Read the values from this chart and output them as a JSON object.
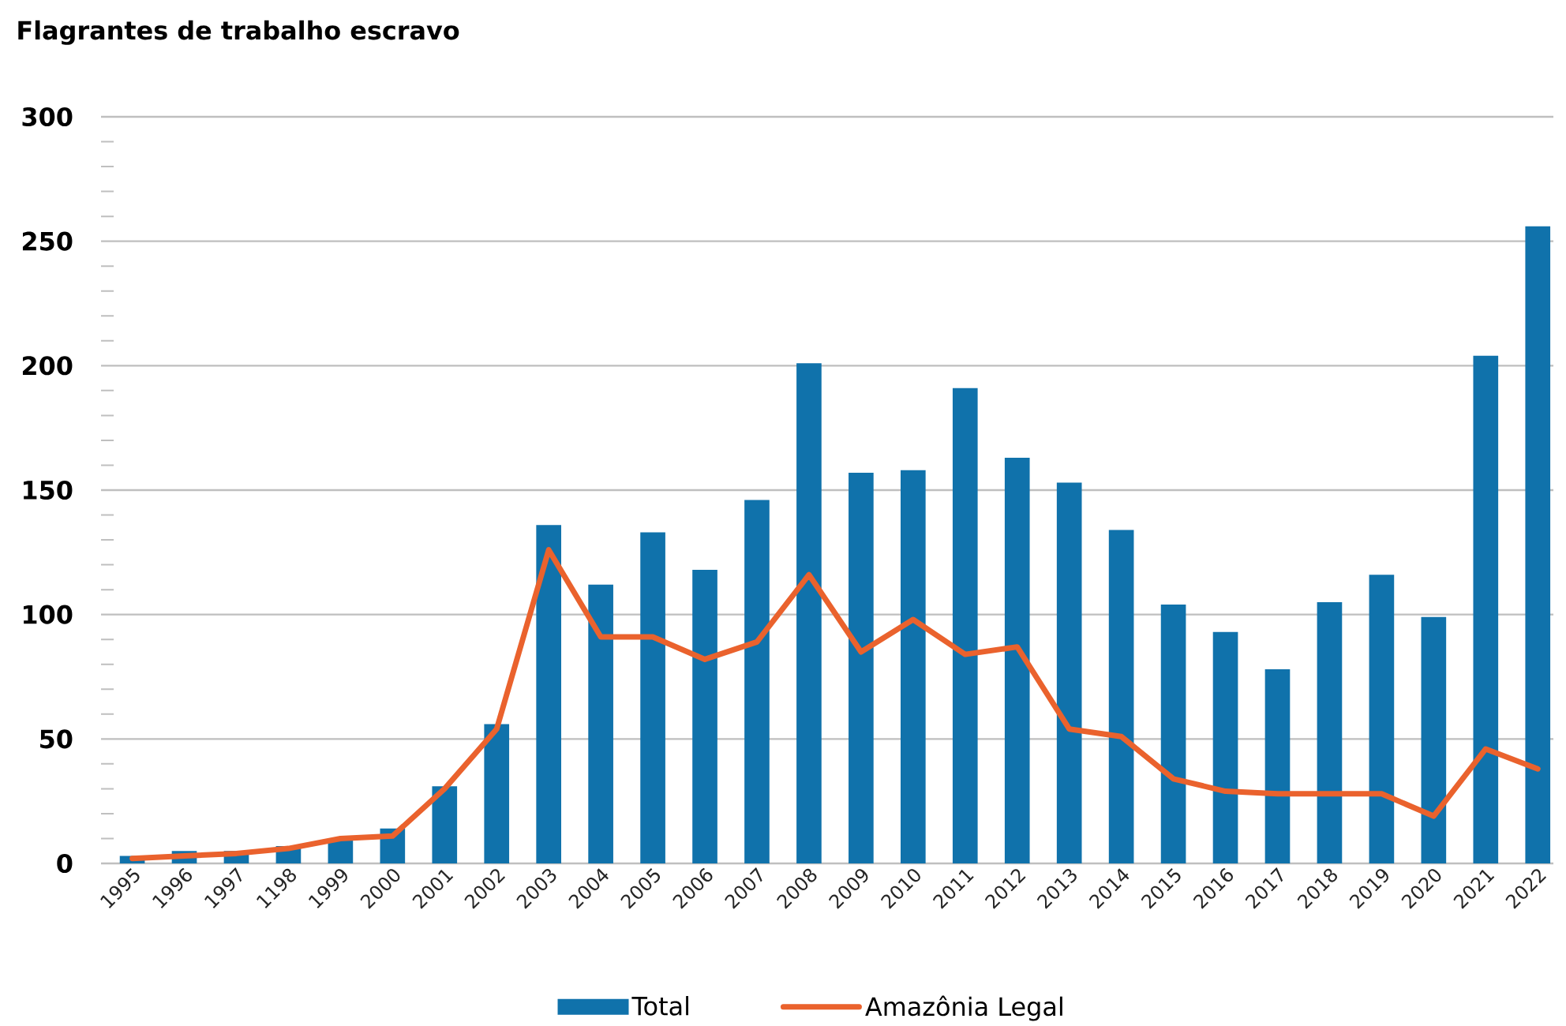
{
  "chart_data": {
    "type": "bar",
    "title": "Flagrantes de trabalho escravo",
    "categories": [
      "1995",
      "1996",
      "1997",
      "1198",
      "1999",
      "2000",
      "2001",
      "2002",
      "2003",
      "2004",
      "2005",
      "2006",
      "2007",
      "2008",
      "2009",
      "2010",
      "2011",
      "2012",
      "2013",
      "2014",
      "2015",
      "2016",
      "2017",
      "2018",
      "2019",
      "2020",
      "2021",
      "2022"
    ],
    "series": [
      {
        "name": "Total",
        "color": "#1072ab",
        "values": [
          3,
          5,
          5,
          7,
          10,
          14,
          31,
          56,
          136,
          112,
          133,
          118,
          146,
          201,
          157,
          158,
          191,
          163,
          153,
          134,
          104,
          93,
          78,
          105,
          116,
          99,
          204,
          256
        ]
      },
      {
        "name": "Amazônia Legal",
        "type": "line",
        "color": "#ea622d",
        "values": [
          2,
          3,
          4,
          6,
          10,
          11,
          30,
          54,
          126,
          91,
          91,
          82,
          89,
          116,
          85,
          98,
          84,
          87,
          54,
          51,
          34,
          29,
          28,
          28,
          28,
          19,
          46,
          38
        ]
      }
    ],
    "ylim": [
      0,
      300
    ],
    "yticks": [
      0,
      {
        "value": 10,
        "label": null
      },
      {
        "value": 20,
        "label": null
      },
      {
        "value": 30,
        "label": null
      },
      {
        "value": 40,
        "label": null
      },
      50,
      {
        "value": 60,
        "label": null
      },
      {
        "value": 70,
        "label": null
      },
      {
        "value": 80,
        "label": null
      },
      {
        "value": 90,
        "label": null
      },
      100,
      {
        "value": 110,
        "label": null
      },
      {
        "value": 120,
        "label": null
      },
      {
        "value": 130,
        "label": null
      },
      {
        "value": 140,
        "label": null
      },
      150,
      {
        "value": 160,
        "label": null
      },
      {
        "value": 170,
        "label": null
      },
      {
        "value": 180,
        "label": null
      },
      {
        "value": 190,
        "label": null
      },
      200,
      {
        "value": 210,
        "label": null
      },
      {
        "value": 220,
        "label": null
      },
      {
        "value": 230,
        "label": null
      },
      {
        "value": 240,
        "label": null
      },
      250,
      {
        "value": 260,
        "label": null
      },
      {
        "value": 270,
        "label": null
      },
      {
        "value": 280,
        "label": null
      },
      {
        "value": 290,
        "label": null
      },
      300
    ],
    "grid": "y",
    "legend": "bottom"
  }
}
